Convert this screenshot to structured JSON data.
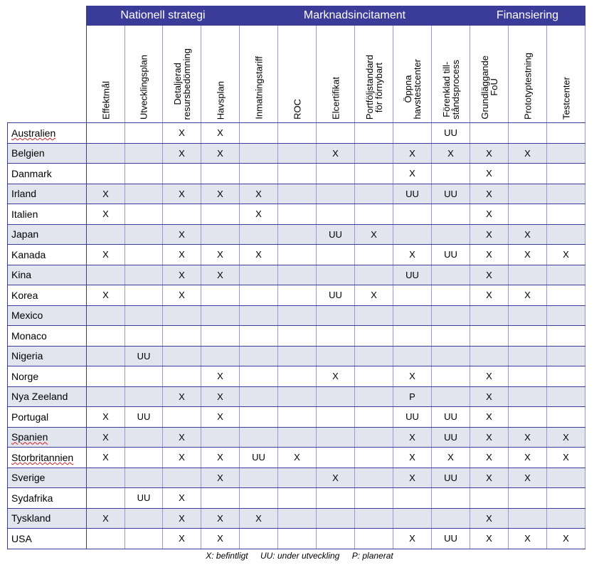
{
  "groups": [
    {
      "label": "Nationell strategi",
      "span": 4
    },
    {
      "label": "Marknadsincitament",
      "span": 6
    },
    {
      "label": "Finansiering",
      "span": 3
    }
  ],
  "columns": [
    "Effektmål",
    "Utvecklingsplan",
    "Detaljerad\nresursbedömning",
    "Havsplan",
    "Inmatningstariff",
    "ROC",
    "Elcertifikat",
    "Portföljstandard\nför förnybart",
    "Öppna\nhavstestcenter",
    "Förenklad till-\nståndsprocess",
    "Grundläggande\nFoU",
    "Prototyptestning",
    "Testcenter"
  ],
  "rows": [
    {
      "country": "Australien",
      "values": [
        "",
        "",
        "X",
        "X",
        "",
        "",
        "",
        "",
        "",
        "UU",
        "",
        "",
        ""
      ]
    },
    {
      "country": "Belgien",
      "values": [
        "",
        "",
        "X",
        "X",
        "",
        "",
        "X",
        "",
        "X",
        "X",
        "X",
        "X",
        ""
      ]
    },
    {
      "country": "Danmark",
      "values": [
        "",
        "",
        "",
        "",
        "",
        "",
        "",
        "",
        "X",
        "",
        "X",
        "",
        ""
      ]
    },
    {
      "country": "Irland",
      "values": [
        "X",
        "",
        "X",
        "X",
        "X",
        "",
        "",
        "",
        "UU",
        "UU",
        "X",
        "",
        ""
      ]
    },
    {
      "country": "Italien",
      "values": [
        "X",
        "",
        "",
        "",
        "X",
        "",
        "",
        "",
        "",
        "",
        "X",
        "",
        ""
      ]
    },
    {
      "country": "Japan",
      "values": [
        "",
        "",
        "X",
        "",
        "",
        "",
        "UU",
        "X",
        "",
        "",
        "X",
        "X",
        ""
      ]
    },
    {
      "country": "Kanada",
      "values": [
        "X",
        "",
        "X",
        "X",
        "X",
        "",
        "",
        "",
        "X",
        "UU",
        "X",
        "X",
        "X"
      ]
    },
    {
      "country": "Kina",
      "values": [
        "",
        "",
        "X",
        "X",
        "",
        "",
        "",
        "",
        "UU",
        "",
        "X",
        "",
        ""
      ]
    },
    {
      "country": "Korea",
      "values": [
        "X",
        "",
        "X",
        "",
        "",
        "",
        "UU",
        "X",
        "",
        "",
        "X",
        "X",
        ""
      ]
    },
    {
      "country": "Mexico",
      "values": [
        "",
        "",
        "",
        "",
        "",
        "",
        "",
        "",
        "",
        "",
        "",
        "",
        ""
      ]
    },
    {
      "country": "Monaco",
      "values": [
        "",
        "",
        "",
        "",
        "",
        "",
        "",
        "",
        "",
        "",
        "",
        "",
        ""
      ]
    },
    {
      "country": "Nigeria",
      "values": [
        "",
        "UU",
        "",
        "",
        "",
        "",
        "",
        "",
        "",
        "",
        "",
        "",
        ""
      ]
    },
    {
      "country": "Norge",
      "values": [
        "",
        "",
        "",
        "X",
        "",
        "",
        "X",
        "",
        "X",
        "",
        "X",
        "",
        ""
      ]
    },
    {
      "country": "Nya Zeeland",
      "values": [
        "",
        "",
        "X",
        "X",
        "",
        "",
        "",
        "",
        "P",
        "",
        "X",
        "",
        ""
      ]
    },
    {
      "country": "Portugal",
      "values": [
        "X",
        "UU",
        "",
        "X",
        "",
        "",
        "",
        "",
        "UU",
        "UU",
        "X",
        "",
        ""
      ]
    },
    {
      "country": "Spanien",
      "values": [
        "X",
        "",
        "X",
        "",
        "",
        "",
        "",
        "",
        "X",
        "UU",
        "X",
        "X",
        "X"
      ]
    },
    {
      "country": "Storbritannien",
      "values": [
        "X",
        "",
        "X",
        "X",
        "UU",
        "X",
        "",
        "",
        "X",
        "X",
        "X",
        "X",
        "X"
      ]
    },
    {
      "country": "Sverige",
      "values": [
        "",
        "",
        "",
        "X",
        "",
        "",
        "X",
        "",
        "X",
        "UU",
        "X",
        "X",
        ""
      ]
    },
    {
      "country": "Sydafrika",
      "values": [
        "",
        "UU",
        "X",
        "",
        "",
        "",
        "",
        "",
        "",
        "",
        "",
        "",
        ""
      ]
    },
    {
      "country": "Tyskland",
      "values": [
        "X",
        "",
        "X",
        "X",
        "X",
        "",
        "",
        "",
        "",
        "",
        "X",
        "",
        ""
      ]
    },
    {
      "country": "USA",
      "values": [
        "",
        "",
        "X",
        "X",
        "",
        "",
        "",
        "",
        "X",
        "UU",
        "X",
        "X",
        "X"
      ]
    }
  ],
  "legend": [
    "X: befintligt",
    "UU: under utveckling",
    "P: planerat"
  ],
  "colors": {
    "header": "#3b3b9a",
    "alt_row": "#e3e5ee"
  }
}
